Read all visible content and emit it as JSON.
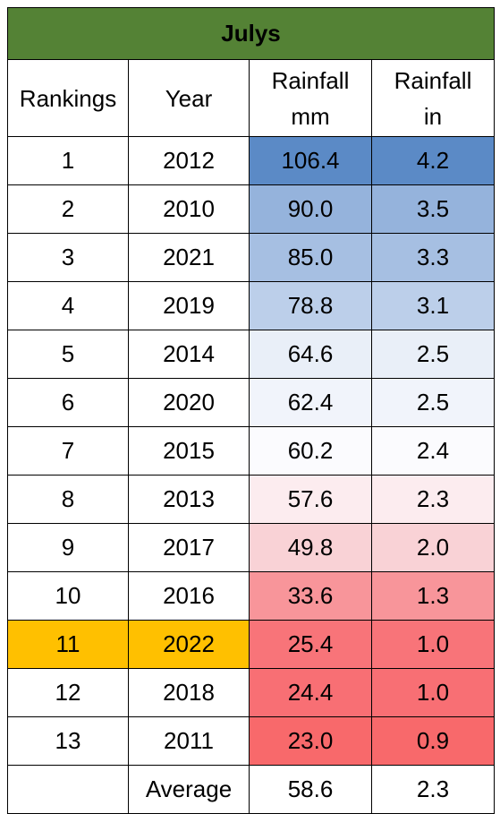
{
  "title": "Julys",
  "headers": {
    "rankings": "Rankings",
    "year": "Year",
    "rain_mm_1": "Rainfall",
    "rain_mm_2": "mm",
    "rain_in_1": "Rainfall",
    "rain_in_2": "in"
  },
  "rows": [
    {
      "rank": "1",
      "year": "2012",
      "mm": "106.4",
      "in": "4.2",
      "mm_color": "#5b8ac6",
      "in_color": "#5b8ac6"
    },
    {
      "rank": "2",
      "year": "2010",
      "mm": "90.0",
      "in": "3.5",
      "mm_color": "#95b3dc",
      "in_color": "#95b3dc"
    },
    {
      "rank": "3",
      "year": "2021",
      "mm": "85.0",
      "in": "3.3",
      "mm_color": "#a6bfe2",
      "in_color": "#a6bfe2"
    },
    {
      "rank": "4",
      "year": "2019",
      "mm": "78.8",
      "in": "3.1",
      "mm_color": "#bccfea",
      "in_color": "#bccfea"
    },
    {
      "rank": "5",
      "year": "2014",
      "mm": "64.6",
      "in": "2.5",
      "mm_color": "#e9eff8",
      "in_color": "#e9eff8"
    },
    {
      "rank": "6",
      "year": "2020",
      "mm": "62.4",
      "in": "2.5",
      "mm_color": "#f1f4fb",
      "in_color": "#f1f4fb"
    },
    {
      "rank": "7",
      "year": "2015",
      "mm": "60.2",
      "in": "2.4",
      "mm_color": "#fbfbfe",
      "in_color": "#fbfbfe"
    },
    {
      "rank": "8",
      "year": "2013",
      "mm": "57.6",
      "in": "2.3",
      "mm_color": "#fcecef",
      "in_color": "#fcecef"
    },
    {
      "rank": "9",
      "year": "2017",
      "mm": "49.8",
      "in": "2.0",
      "mm_color": "#f9d2d6",
      "in_color": "#f9d2d6"
    },
    {
      "rank": "10",
      "year": "2016",
      "mm": "33.6",
      "in": "1.3",
      "mm_color": "#f8959a",
      "in_color": "#f8959a"
    },
    {
      "rank": "11",
      "year": "2022",
      "mm": "25.4",
      "in": "1.0",
      "mm_color": "#f87479",
      "in_color": "#f87479",
      "highlight": "#ffc000"
    },
    {
      "rank": "12",
      "year": "2018",
      "mm": "24.4",
      "in": "1.0",
      "mm_color": "#f86f74",
      "in_color": "#f86f74"
    },
    {
      "rank": "13",
      "year": "2011",
      "mm": "23.0",
      "in": "0.9",
      "mm_color": "#f8696b",
      "in_color": "#f8696b"
    }
  ],
  "average": {
    "label": "Average",
    "mm": "58.6",
    "in": "2.3"
  }
}
